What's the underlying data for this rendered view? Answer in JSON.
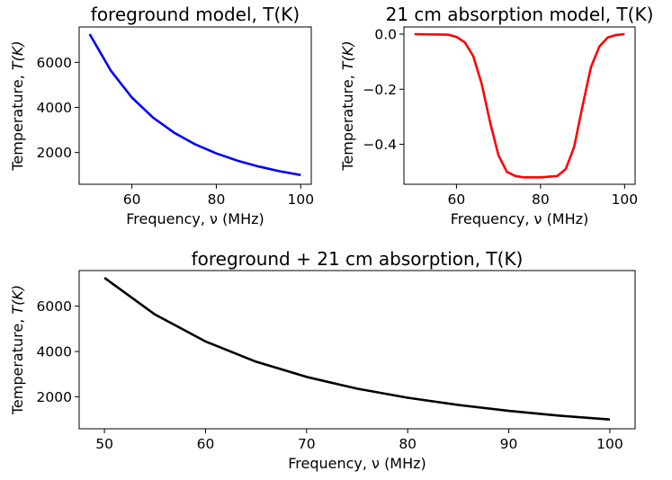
{
  "chart_data": [
    {
      "type": "line",
      "title": "foreground model, T(K)",
      "xlabel": "Frequency, ν (MHz)",
      "ylabel": "Temperature, T(K)",
      "xlim": [
        47.5,
        102.5
      ],
      "ylim": [
        590,
        7570
      ],
      "xticks": [
        60,
        80,
        100
      ],
      "yticks": [
        2000,
        4000,
        6000
      ],
      "series": [
        {
          "color": "#0000ff",
          "x": [
            50,
            55,
            60,
            65,
            70,
            75,
            80,
            85,
            90,
            95,
            100
          ],
          "values": [
            7250,
            5630,
            4440,
            3550,
            2880,
            2360,
            1960,
            1640,
            1380,
            1170,
            1000
          ]
        }
      ]
    },
    {
      "type": "line",
      "title": "21 cm absorption model, T(K)",
      "xlabel": "Frequency, ν (MHz)",
      "ylabel": "Temperature, T(K)",
      "xlim": [
        47.5,
        102.5
      ],
      "ylim": [
        -0.545,
        0.026
      ],
      "xticks": [
        60,
        80,
        100
      ],
      "yticks": [
        0.0,
        -0.2,
        -0.4
      ],
      "series": [
        {
          "color": "#ff0000",
          "x": [
            50,
            58,
            60,
            62,
            64,
            66,
            68,
            70,
            72,
            74,
            76,
            80,
            84,
            86,
            88,
            90,
            92,
            94,
            96,
            98,
            100
          ],
          "values": [
            0.0,
            -0.002,
            -0.01,
            -0.03,
            -0.08,
            -0.18,
            -0.32,
            -0.44,
            -0.5,
            -0.515,
            -0.52,
            -0.52,
            -0.515,
            -0.49,
            -0.41,
            -0.26,
            -0.12,
            -0.045,
            -0.012,
            -0.003,
            0.0
          ]
        }
      ]
    },
    {
      "type": "line",
      "title": "foreground + 21 cm absorption, T(K)",
      "xlabel": "Frequency, ν (MHz)",
      "ylabel": "Temperature, T(K)",
      "xlim": [
        47.5,
        102.5
      ],
      "ylim": [
        590,
        7570
      ],
      "xticks": [
        50,
        60,
        70,
        80,
        90,
        100
      ],
      "yticks": [
        2000,
        4000,
        6000
      ],
      "series": [
        {
          "color": "#000000",
          "x": [
            50,
            55,
            60,
            65,
            70,
            75,
            80,
            85,
            90,
            95,
            100
          ],
          "values": [
            7250,
            5630,
            4440,
            3550,
            2880,
            2360,
            1960,
            1640,
            1380,
            1170,
            1000
          ]
        }
      ]
    }
  ]
}
